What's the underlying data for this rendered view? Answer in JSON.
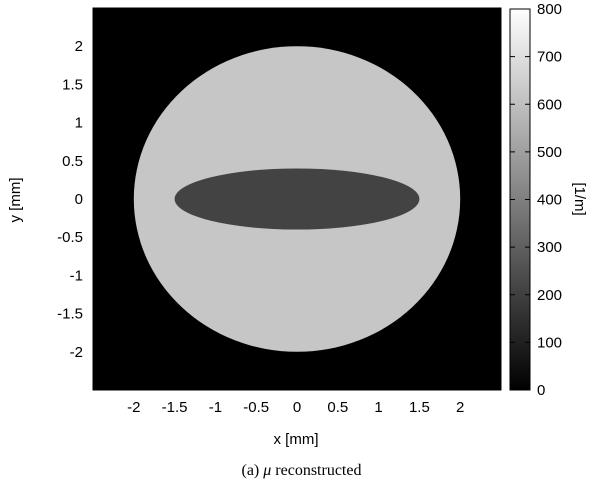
{
  "chart_data": {
    "type": "heatmap",
    "title": "",
    "xlabel": "x [mm]",
    "ylabel": "y [mm]",
    "xlim": [
      -2.5,
      2.5
    ],
    "ylim": [
      -2.5,
      2.5
    ],
    "x_ticks": [
      "-2",
      "-1.5",
      "-1",
      "-0.5",
      "0",
      "0.5",
      "1",
      "1.5",
      "2"
    ],
    "y_ticks": [
      "2",
      "1.5",
      "1",
      "0.5",
      "0",
      "-0.5",
      "-1",
      "-1.5",
      "-2"
    ],
    "colorbar": {
      "label": "[1/m]",
      "range": [
        0,
        800
      ],
      "ticks": [
        "800",
        "700",
        "600",
        "500",
        "400",
        "300",
        "200",
        "100",
        "0"
      ],
      "colormap": "grayscale"
    },
    "regions": [
      {
        "shape": "disk",
        "center": [
          0,
          0
        ],
        "radius": 2.0,
        "value": 620
      },
      {
        "shape": "ellipse",
        "center": [
          0,
          0
        ],
        "semi_axes": [
          1.5,
          0.4
        ],
        "value": 210
      }
    ],
    "background_value": 0
  },
  "caption": {
    "prefix": "(a) ",
    "symbol": "μ",
    "text": " reconstructed"
  }
}
